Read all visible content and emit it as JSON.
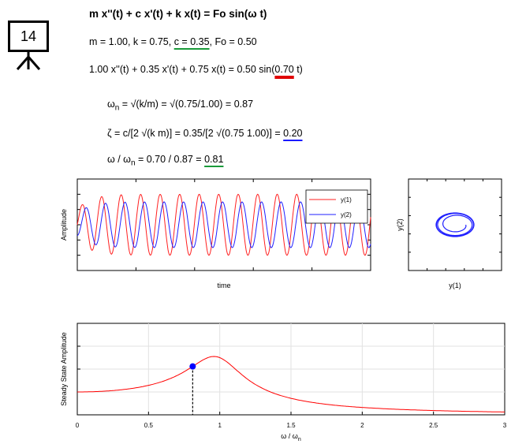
{
  "badge": {
    "number": "14"
  },
  "equations": {
    "title": "m x''(t) + c x'(t) + k x(t) = Fo sin(ω t)",
    "params_a": "m = 1.00, k = 0.75, ",
    "params_c": "c = 0.35",
    "params_b": ", Fo = 0.50",
    "instance_a": "1.00 x''(t) + 0.35 x'(t) + 0.75 x(t) = 0.50 sin(",
    "instance_w": "0.70",
    "instance_b": " t)",
    "wn_label": "ω",
    "wn_sub": "n",
    "wn_rest": " = √(k/m) = √(0.75/1.00) = 0.87",
    "zeta_a": "ζ = c/[2 √(k m)] = 0.35/[2 √(0.75 1.00)] = ",
    "zeta_val": "0.20",
    "ratio_a": "ω / ω",
    "ratio_sub": "n",
    "ratio_b": " = 0.70 / 0.87 = ",
    "ratio_val": "0.81"
  },
  "colors": {
    "y1": "#ff2020",
    "y2": "#2020ff",
    "resonance": "#ff0000",
    "marker": "#0000ff",
    "green": "#1a9a3a"
  },
  "chart_data": [
    {
      "type": "line",
      "xlabel": "time",
      "ylabel": "Amplitude",
      "series": [
        {
          "name": "y(1)",
          "amplitude": 0.8,
          "omega": 0.7,
          "phase": 0.0
        },
        {
          "name": "y(2)",
          "amplitude": 0.6,
          "omega": 0.7,
          "phase": -1.25
        }
      ],
      "xlim": [
        0,
        135
      ],
      "ylim": [
        -1.2,
        1.2
      ],
      "grid": false,
      "legend_position": "top-right"
    },
    {
      "type": "line",
      "subtype": "phase-portrait",
      "xlabel": "y(1)",
      "ylabel": "y(2)"
    },
    {
      "type": "line",
      "xlabel": "ω / ω",
      "xlabel_sub": "n",
      "ylabel": "Steady State Amplitude",
      "xticks": [
        "0",
        "0.5",
        "1",
        "1.5",
        "2",
        "2.5",
        "3"
      ],
      "xlim": [
        0,
        3
      ],
      "zeta": 0.2,
      "marker_x": 0.81,
      "grid": true
    }
  ]
}
